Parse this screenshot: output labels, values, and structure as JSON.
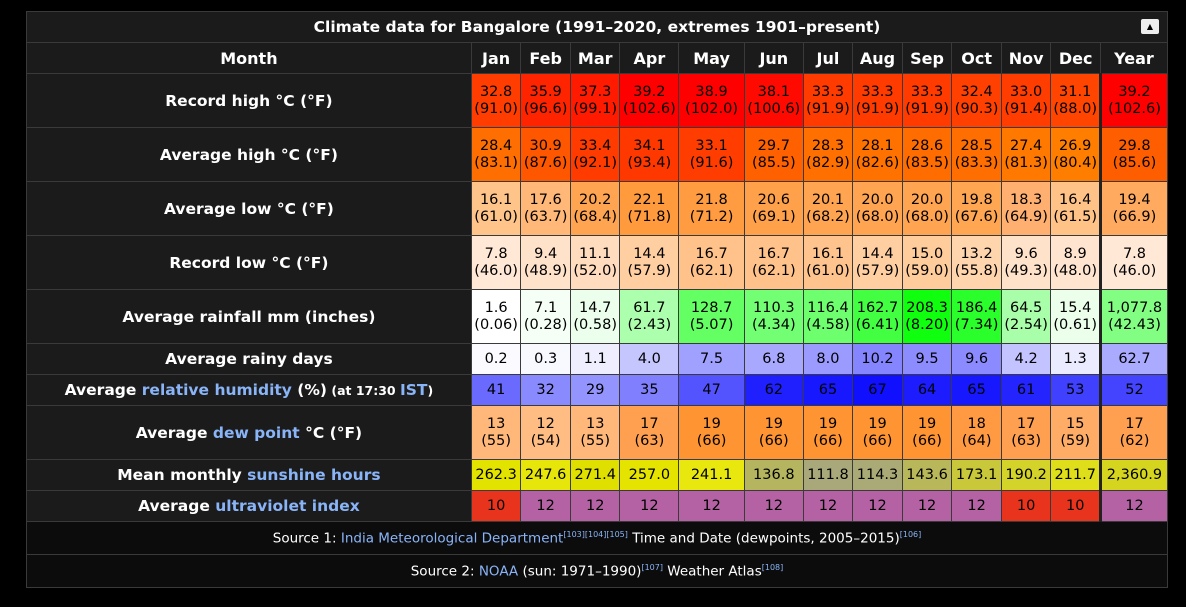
{
  "title": "Climate data for Bangalore (1991–2020, extremes 1901–present)",
  "collapse_icon": "▲",
  "header": {
    "month_label": "Month",
    "months": [
      "Jan",
      "Feb",
      "Mar",
      "Apr",
      "May",
      "Jun",
      "Jul",
      "Aug",
      "Sep",
      "Oct",
      "Nov",
      "Dec"
    ],
    "year_label": "Year"
  },
  "rows": [
    {
      "label_parts": [
        "Record high °C (°F)"
      ],
      "values": [
        "32.8",
        "35.9",
        "37.3",
        "39.2",
        "38.9",
        "38.1",
        "33.3",
        "33.3",
        "33.3",
        "32.4",
        "33.0",
        "31.1",
        "39.2"
      ],
      "secondary": [
        "(91.0)",
        "(96.6)",
        "(99.1)",
        "(102.6)",
        "(102.0)",
        "(100.6)",
        "(91.9)",
        "(91.9)",
        "(91.9)",
        "(90.3)",
        "(91.4)",
        "(88.0)",
        "(102.6)"
      ],
      "colors": [
        "#ff3d00",
        "#ff2400",
        "#ff1a00",
        "#ff0000",
        "#ff0000",
        "#ff0a00",
        "#ff3b00",
        "#ff3b00",
        "#ff3b00",
        "#ff4000",
        "#ff3d00",
        "#ff4500",
        "#ff0000"
      ]
    },
    {
      "label_parts": [
        "Average high °C (°F)"
      ],
      "values": [
        "28.4",
        "30.9",
        "33.4",
        "34.1",
        "33.1",
        "29.7",
        "28.3",
        "28.1",
        "28.6",
        "28.5",
        "27.4",
        "26.9",
        "29.8"
      ],
      "secondary": [
        "(83.1)",
        "(87.6)",
        "(92.1)",
        "(93.4)",
        "(91.6)",
        "(85.5)",
        "(82.9)",
        "(82.6)",
        "(83.5)",
        "(83.3)",
        "(81.3)",
        "(80.4)",
        "(85.6)"
      ],
      "colors": [
        "#ff6e00",
        "#ff5700",
        "#ff3b00",
        "#ff3800",
        "#ff3d00",
        "#ff6000",
        "#ff7000",
        "#ff7200",
        "#ff6d00",
        "#ff6e00",
        "#ff7900",
        "#ff7e00",
        "#ff5e00"
      ]
    },
    {
      "label_parts": [
        "Average low °C (°F)"
      ],
      "values": [
        "16.1",
        "17.6",
        "20.2",
        "22.1",
        "21.8",
        "20.6",
        "20.1",
        "20.0",
        "20.0",
        "19.8",
        "18.3",
        "16.4",
        "19.4"
      ],
      "secondary": [
        "(61.0)",
        "(63.7)",
        "(68.4)",
        "(71.8)",
        "(71.2)",
        "(69.1)",
        "(68.2)",
        "(68.0)",
        "(68.0)",
        "(67.6)",
        "(64.9)",
        "(61.5)",
        "(66.9)"
      ],
      "colors": [
        "#ffc48a",
        "#ffb877",
        "#ffa450",
        "#ff9a3d",
        "#ff9b40",
        "#ffa04a",
        "#ffa450",
        "#ffa450",
        "#ffa450",
        "#ffa652",
        "#ffb070",
        "#ffc287",
        "#ffaa5e"
      ]
    },
    {
      "label_parts": [
        "Record low °C (°F)"
      ],
      "values": [
        "7.8",
        "9.4",
        "11.1",
        "14.4",
        "16.7",
        "16.7",
        "16.1",
        "14.4",
        "15.0",
        "13.2",
        "9.6",
        "8.9",
        "7.8"
      ],
      "secondary": [
        "(46.0)",
        "(48.9)",
        "(52.0)",
        "(57.9)",
        "(62.1)",
        "(62.1)",
        "(61.0)",
        "(57.9)",
        "(59.0)",
        "(55.8)",
        "(49.3)",
        "(48.0)",
        "(46.0)"
      ],
      "colors": [
        "#ffe8d6",
        "#ffe2ca",
        "#ffdcbd",
        "#ffcfa2",
        "#ffc28a",
        "#ffc28a",
        "#ffc48e",
        "#ffcfa2",
        "#ffcc9c",
        "#ffd5ae",
        "#ffe2ca",
        "#ffe5d0",
        "#ffe8d6"
      ]
    },
    {
      "label_parts": [
        "Average rainfall mm (inches)"
      ],
      "values": [
        "1.6",
        "7.1",
        "14.7",
        "61.7",
        "128.7",
        "110.3",
        "116.4",
        "162.7",
        "208.3",
        "186.4",
        "64.5",
        "15.4",
        "1,077.8"
      ],
      "secondary": [
        "(0.06)",
        "(0.28)",
        "(0.58)",
        "(2.43)",
        "(5.07)",
        "(4.34)",
        "(4.58)",
        "(6.41)",
        "(8.20)",
        "(7.34)",
        "(2.54)",
        "(0.61)",
        "(42.43)"
      ],
      "colors": [
        "#fefffe",
        "#f6fff6",
        "#ecffec",
        "#acffac",
        "#63ff63",
        "#73ff73",
        "#6eff6e",
        "#42ff42",
        "#0fff0f",
        "#2bff2b",
        "#a9ffa9",
        "#ebffeb",
        "#82ff82"
      ]
    },
    {
      "label_parts": [
        "Average rainy days"
      ],
      "values": [
        "0.2",
        "0.3",
        "1.1",
        "4.0",
        "7.5",
        "6.8",
        "8.0",
        "10.2",
        "9.5",
        "9.6",
        "4.2",
        "1.3",
        "62.7"
      ],
      "colors": [
        "#fbfbff",
        "#f8f8ff",
        "#eeeeff",
        "#c6c6ff",
        "#a0a0ff",
        "#a8a8ff",
        "#9b9bff",
        "#8585ff",
        "#8c8cff",
        "#8b8bff",
        "#c3c3ff",
        "#ebebff",
        "#aaaaff"
      ]
    },
    {
      "label_parts": [
        "Average ",
        "relative humidity",
        " (%)",
        " (at 17:30 ",
        "IST",
        ")"
      ],
      "values": [
        "41",
        "32",
        "29",
        "35",
        "47",
        "62",
        "65",
        "67",
        "64",
        "65",
        "61",
        "53",
        "52"
      ],
      "colors": [
        "#6a6aff",
        "#8a8aff",
        "#9494ff",
        "#8080ff",
        "#5454ff",
        "#2020ff",
        "#1818ff",
        "#1010ff",
        "#1c1cff",
        "#1818ff",
        "#2424ff",
        "#4040ff",
        "#4444ff"
      ]
    },
    {
      "label_parts": [
        "Average ",
        "dew point",
        " °C (°F)"
      ],
      "values": [
        "13",
        "12",
        "13",
        "17",
        "19",
        "19",
        "19",
        "19",
        "19",
        "18",
        "17",
        "15",
        " 17"
      ],
      "secondary": [
        "(55)",
        "(54)",
        "(55)",
        "(63)",
        "(66)",
        "(66)",
        "(66)",
        "(66)",
        "(66)",
        "(64)",
        "(63)",
        "(59)",
        "(62)"
      ],
      "colors": [
        "#ffb87a",
        "#ffbd83",
        "#ffb87a",
        "#ffa050",
        "#ff9433",
        "#ff9433",
        "#ff9433",
        "#ff9433",
        "#ff9433",
        "#ff9a42",
        "#ffa050",
        "#ffac66",
        "#ffa050"
      ]
    },
    {
      "label_parts": [
        "Mean monthly ",
        "sunshine hours"
      ],
      "values": [
        "262.3",
        "247.6",
        "271.4",
        "257.0",
        "241.1",
        "136.8",
        "111.8",
        "114.3",
        "143.6",
        "173.1",
        "190.2",
        "211.7",
        "2,360.9"
      ],
      "colors": [
        "#e3e300",
        "#e6e60a",
        "#dfdf00",
        "#e4e400",
        "#e8e80f",
        "#b5b560",
        "#a8a87a",
        "#aaaa76",
        "#b8b85b",
        "#c8c83a",
        "#d3d32a",
        "#dede1a",
        "#d5d51f"
      ]
    },
    {
      "label_parts": [
        "Average ",
        "ultraviolet index"
      ],
      "values": [
        "10",
        "12",
        "12",
        "12",
        "12",
        "12",
        "12",
        "12",
        "12",
        "12",
        "10",
        "10",
        "12"
      ],
      "colors": [
        "#e8341c",
        "#b462a4",
        "#b462a4",
        "#b462a4",
        "#b462a4",
        "#b462a4",
        "#b462a4",
        "#b462a4",
        "#b462a4",
        "#b462a4",
        "#e8341c",
        "#e8341c",
        "#b462a4"
      ]
    }
  ],
  "sources": {
    "s1_prefix": "Source 1: ",
    "s1_link": "India Meteorological Department",
    "s1_refs": "[103][104][105]",
    "s1_text": " Time and Date (dewpoints, 2005–2015)",
    "s1_ref2": "[106]",
    "s2_prefix": "Source 2: ",
    "s2_link": "NOAA",
    "s2_text": " (sun: 1971–1990)",
    "s2_ref": "[107]",
    "s2_text2": " Weather Atlas",
    "s2_ref2": "[108]"
  }
}
